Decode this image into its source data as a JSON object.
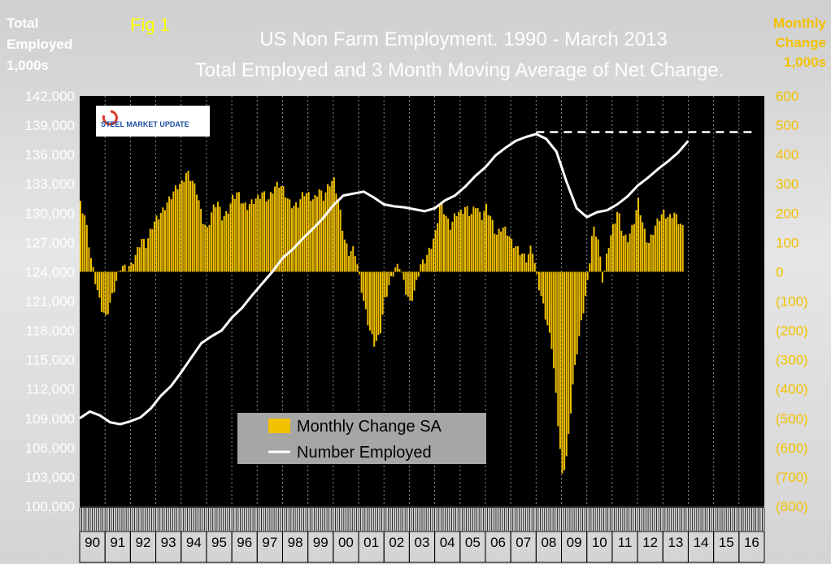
{
  "figure_label": "Fig 1",
  "title_line1": "US Non Farm Employment. 1990 - March  2013",
  "title_line2": "Total Employed and 3 Month Moving Average of Net Change.",
  "logo_text": "STEEL MARKET UPDATE",
  "colors": {
    "plot_bg": "#000000",
    "bars": "#f2c100",
    "line": "#ffffff",
    "right_axis": "#f2c100",
    "title_text": "#ffffff",
    "figure_label": "#ffff00"
  },
  "chart_data": {
    "type": "bar+line",
    "title": "US Non Farm Employment. 1990 - March  2013 / Total Employed and 3 Month Moving Average of Net Change.",
    "x_tick_labels": [
      "90",
      "91",
      "92",
      "93",
      "94",
      "95",
      "96",
      "97",
      "98",
      "99",
      "00",
      "01",
      "02",
      "03",
      "04",
      "05",
      "06",
      "07",
      "08",
      "09",
      "10",
      "11",
      "12",
      "13",
      "14",
      "15",
      "16"
    ],
    "x_range": [
      1990,
      2017
    ],
    "grid": "vertical gridlines at each year",
    "legend_position": "bottom-center inside plot",
    "y_left": {
      "label_lines": [
        "Total",
        "Employed",
        "1,000s"
      ],
      "range": [
        100000,
        142000
      ],
      "ticks": [
        "100,000",
        "103,000",
        "106,000",
        "109,000",
        "112,000",
        "115,000",
        "118,000",
        "121,000",
        "124,000",
        "127,000",
        "130,000",
        "133,000",
        "136,000",
        "139,000",
        "142,000"
      ]
    },
    "y_right": {
      "label_lines": [
        "Monthly",
        "Change",
        "1,000s"
      ],
      "range": [
        -800,
        600
      ],
      "ticks": [
        "(800)",
        "(700)",
        "(600)",
        "(500)",
        "(400)",
        "(300)",
        "(200)",
        "(100)",
        "0",
        "100",
        "200",
        "300",
        "400",
        "500",
        "600"
      ]
    },
    "series": [
      {
        "name": "Monthly Change SA",
        "type": "bar",
        "axis": "right",
        "points": [
          [
            1990.0,
            230
          ],
          [
            1990.2,
            180
          ],
          [
            1990.4,
            50
          ],
          [
            1990.6,
            -40
          ],
          [
            1990.8,
            -120
          ],
          [
            1991.0,
            -160
          ],
          [
            1991.2,
            -100
          ],
          [
            1991.4,
            -40
          ],
          [
            1991.6,
            20
          ],
          [
            1991.8,
            10
          ],
          [
            1992.0,
            20
          ],
          [
            1992.2,
            60
          ],
          [
            1992.4,
            110
          ],
          [
            1992.6,
            90
          ],
          [
            1992.8,
            150
          ],
          [
            1993.0,
            180
          ],
          [
            1993.2,
            200
          ],
          [
            1993.4,
            230
          ],
          [
            1993.6,
            260
          ],
          [
            1993.8,
            290
          ],
          [
            1994.0,
            300
          ],
          [
            1994.2,
            340
          ],
          [
            1994.4,
            310
          ],
          [
            1994.6,
            270
          ],
          [
            1994.8,
            180
          ],
          [
            1995.0,
            140
          ],
          [
            1995.2,
            210
          ],
          [
            1995.4,
            240
          ],
          [
            1995.6,
            180
          ],
          [
            1995.8,
            200
          ],
          [
            1996.0,
            250
          ],
          [
            1996.2,
            270
          ],
          [
            1996.4,
            230
          ],
          [
            1996.6,
            220
          ],
          [
            1996.8,
            240
          ],
          [
            1997.0,
            250
          ],
          [
            1997.2,
            270
          ],
          [
            1997.4,
            240
          ],
          [
            1997.6,
            280
          ],
          [
            1997.8,
            300
          ],
          [
            1998.0,
            280
          ],
          [
            1998.2,
            240
          ],
          [
            1998.4,
            220
          ],
          [
            1998.6,
            230
          ],
          [
            1998.8,
            270
          ],
          [
            1999.0,
            260
          ],
          [
            1999.2,
            240
          ],
          [
            1999.4,
            280
          ],
          [
            1999.6,
            250
          ],
          [
            1999.8,
            300
          ],
          [
            2000.0,
            310
          ],
          [
            2000.2,
            230
          ],
          [
            2000.4,
            110
          ],
          [
            2000.6,
            60
          ],
          [
            2000.8,
            80
          ],
          [
            2001.0,
            -20
          ],
          [
            2001.2,
            -120
          ],
          [
            2001.4,
            -200
          ],
          [
            2001.6,
            -250
          ],
          [
            2001.8,
            -220
          ],
          [
            2002.0,
            -100
          ],
          [
            2002.2,
            -40
          ],
          [
            2002.4,
            10
          ],
          [
            2002.6,
            20
          ],
          [
            2002.8,
            -60
          ],
          [
            2003.0,
            -110
          ],
          [
            2003.2,
            -60
          ],
          [
            2003.4,
            20
          ],
          [
            2003.6,
            40
          ],
          [
            2003.8,
            80
          ],
          [
            2004.0,
            130
          ],
          [
            2004.2,
            240
          ],
          [
            2004.4,
            190
          ],
          [
            2004.6,
            150
          ],
          [
            2004.8,
            200
          ],
          [
            2005.0,
            200
          ],
          [
            2005.2,
            220
          ],
          [
            2005.4,
            190
          ],
          [
            2005.6,
            230
          ],
          [
            2005.8,
            180
          ],
          [
            2006.0,
            220
          ],
          [
            2006.2,
            180
          ],
          [
            2006.4,
            120
          ],
          [
            2006.6,
            150
          ],
          [
            2006.8,
            140
          ],
          [
            2007.0,
            100
          ],
          [
            2007.2,
            80
          ],
          [
            2007.4,
            60
          ],
          [
            2007.6,
            40
          ],
          [
            2007.8,
            90
          ],
          [
            2008.0,
            -20
          ],
          [
            2008.2,
            -100
          ],
          [
            2008.4,
            -180
          ],
          [
            2008.6,
            -260
          ],
          [
            2008.8,
            -480
          ],
          [
            2009.0,
            -700
          ],
          [
            2009.2,
            -620
          ],
          [
            2009.4,
            -400
          ],
          [
            2009.6,
            -260
          ],
          [
            2009.8,
            -150
          ],
          [
            2010.0,
            -40
          ],
          [
            2010.2,
            150
          ],
          [
            2010.4,
            120
          ],
          [
            2010.6,
            -40
          ],
          [
            2010.8,
            80
          ],
          [
            2011.0,
            150
          ],
          [
            2011.2,
            210
          ],
          [
            2011.4,
            120
          ],
          [
            2011.6,
            110
          ],
          [
            2011.8,
            160
          ],
          [
            2012.0,
            240
          ],
          [
            2012.2,
            150
          ],
          [
            2012.4,
            90
          ],
          [
            2012.6,
            140
          ],
          [
            2012.8,
            180
          ],
          [
            2013.0,
            200
          ],
          [
            2013.2,
            180
          ],
          [
            2013.4,
            200
          ],
          [
            2013.6,
            170
          ],
          [
            2013.8,
            140
          ]
        ]
      },
      {
        "name": "Number Employed",
        "type": "line",
        "axis": "left",
        "points": [
          [
            1990.0,
            109000
          ],
          [
            1990.4,
            109700
          ],
          [
            1990.8,
            109300
          ],
          [
            1991.2,
            108600
          ],
          [
            1991.6,
            108400
          ],
          [
            1992.0,
            108700
          ],
          [
            1992.4,
            109100
          ],
          [
            1992.8,
            110000
          ],
          [
            1993.2,
            111300
          ],
          [
            1993.6,
            112300
          ],
          [
            1994.0,
            113700
          ],
          [
            1994.4,
            115200
          ],
          [
            1994.8,
            116700
          ],
          [
            1995.2,
            117400
          ],
          [
            1995.6,
            118000
          ],
          [
            1996.0,
            119300
          ],
          [
            1996.4,
            120300
          ],
          [
            1996.8,
            121600
          ],
          [
            1997.2,
            122800
          ],
          [
            1997.6,
            124000
          ],
          [
            1998.0,
            125400
          ],
          [
            1998.4,
            126300
          ],
          [
            1998.8,
            127400
          ],
          [
            1999.2,
            128400
          ],
          [
            1999.6,
            129500
          ],
          [
            2000.0,
            130800
          ],
          [
            2000.4,
            131800
          ],
          [
            2000.8,
            132000
          ],
          [
            2001.2,
            132200
          ],
          [
            2001.6,
            131600
          ],
          [
            2002.0,
            130900
          ],
          [
            2002.4,
            130700
          ],
          [
            2002.8,
            130600
          ],
          [
            2003.2,
            130400
          ],
          [
            2003.6,
            130200
          ],
          [
            2004.0,
            130500
          ],
          [
            2004.4,
            131300
          ],
          [
            2004.8,
            131800
          ],
          [
            2005.2,
            132700
          ],
          [
            2005.6,
            133800
          ],
          [
            2006.0,
            134700
          ],
          [
            2006.4,
            135900
          ],
          [
            2006.8,
            136700
          ],
          [
            2007.2,
            137400
          ],
          [
            2007.6,
            137800
          ],
          [
            2008.0,
            138100
          ],
          [
            2008.4,
            137600
          ],
          [
            2008.8,
            136300
          ],
          [
            2009.2,
            133200
          ],
          [
            2009.6,
            130500
          ],
          [
            2010.0,
            129600
          ],
          [
            2010.4,
            130100
          ],
          [
            2010.8,
            130300
          ],
          [
            2011.2,
            130900
          ],
          [
            2011.6,
            131700
          ],
          [
            2012.0,
            132800
          ],
          [
            2012.4,
            133600
          ],
          [
            2012.8,
            134500
          ],
          [
            2013.2,
            135300
          ],
          [
            2013.6,
            136200
          ],
          [
            2014.0,
            137400
          ]
        ]
      },
      {
        "name": "previous peak reference",
        "type": "dashed-line",
        "axis": "left",
        "points": [
          [
            2008.0,
            138300
          ],
          [
            2016.6,
            138300
          ]
        ]
      }
    ]
  }
}
